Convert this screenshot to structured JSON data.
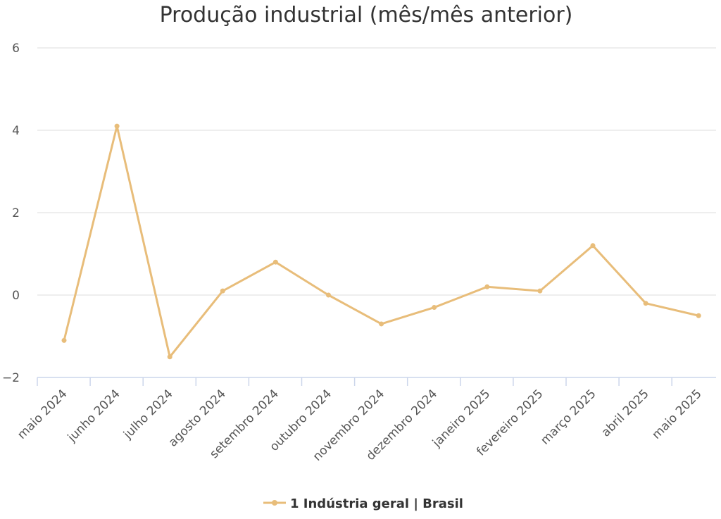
{
  "chart_data": {
    "type": "line",
    "title": "Produção industrial (mês/mês anterior)",
    "xlabel": "",
    "ylabel": "",
    "ylim": [
      -2,
      6
    ],
    "y_ticks": [
      "−2",
      "0",
      "2",
      "4",
      "6"
    ],
    "y_tick_values": [
      -2,
      0,
      2,
      4,
      6
    ],
    "grid": true,
    "legend_position": "bottom-center",
    "categories": [
      "maio 2024",
      "junho 2024",
      "julho 2024",
      "agosto 2024",
      "setembro 2024",
      "outubro 2024",
      "novembro 2024",
      "dezembro 2024",
      "janeiro 2025",
      "fevereiro 2025",
      "março 2025",
      "abril 2025",
      "maio 2025"
    ],
    "series": [
      {
        "name": "1 Indústria geral | Brasil",
        "color": "#e8bd7a",
        "values": [
          -1.1,
          4.1,
          -1.5,
          0.1,
          0.8,
          0.0,
          -0.7,
          -0.3,
          0.2,
          0.1,
          1.2,
          -0.2,
          -0.5
        ]
      }
    ]
  }
}
